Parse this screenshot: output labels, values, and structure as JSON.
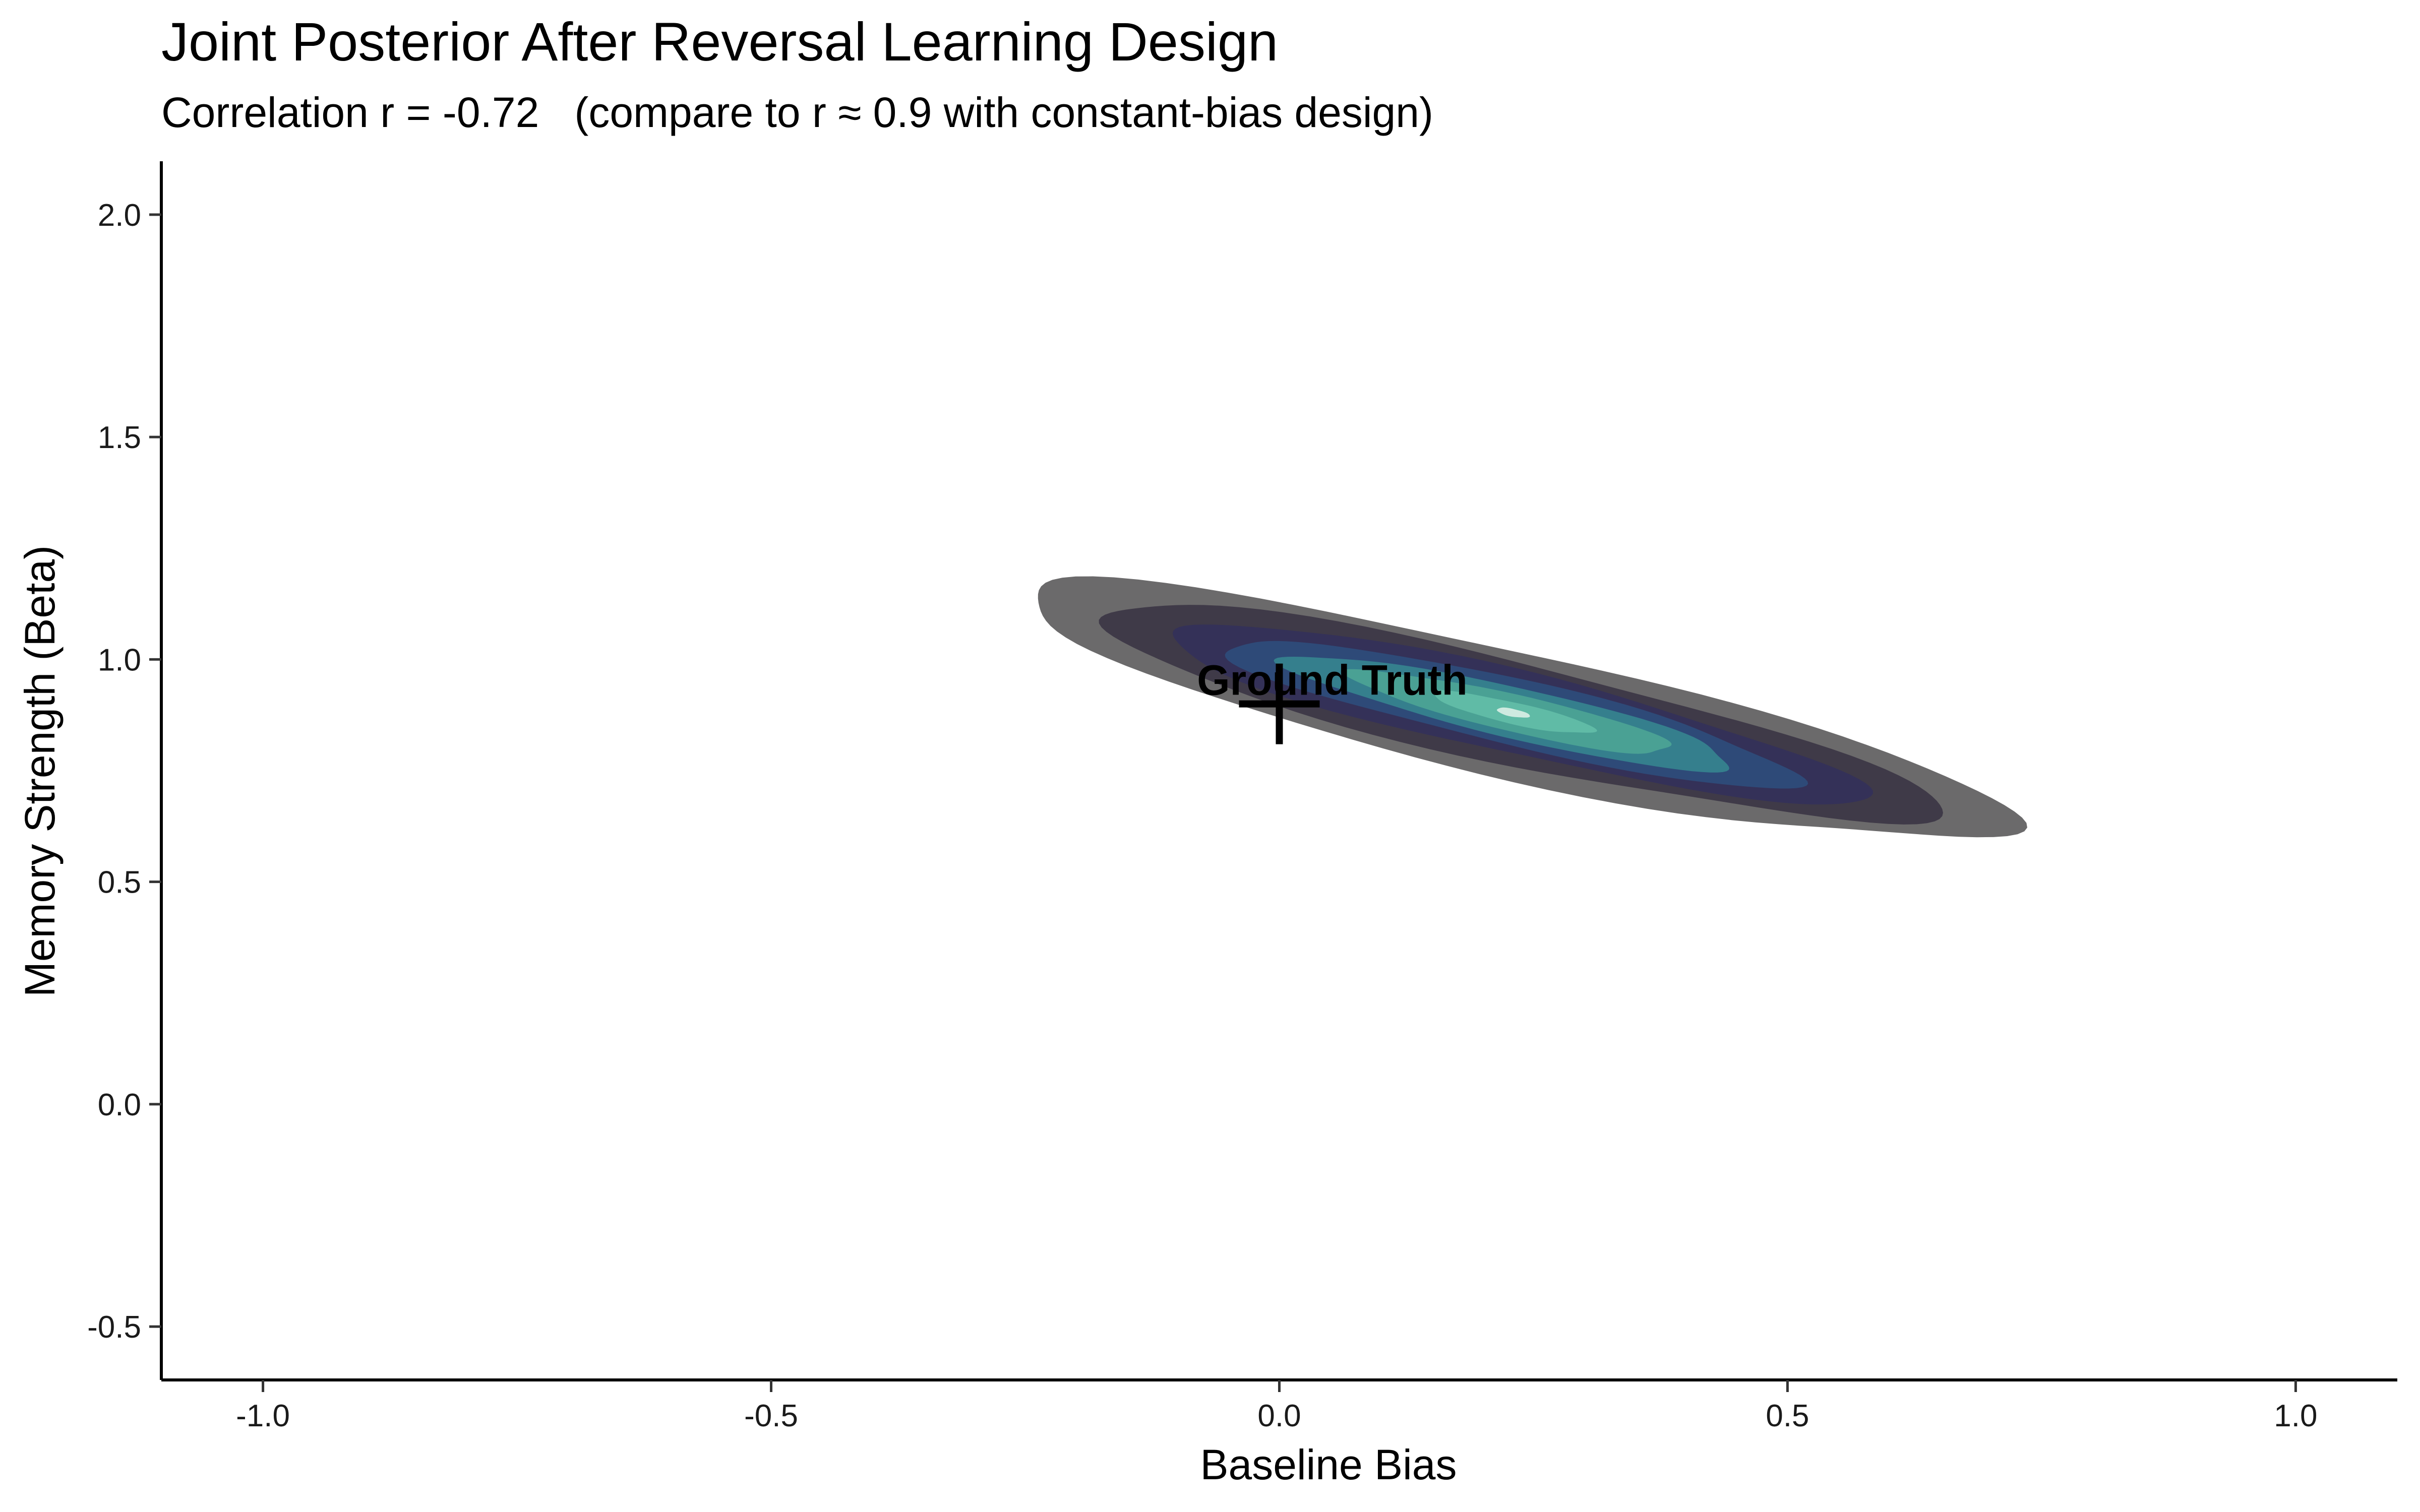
{
  "chart_data": {
    "type": "contour",
    "title": "Joint Posterior After Reversal Learning Design",
    "subtitle": "Correlation r = -0.72   (compare to r ≈ 0.9 with constant-bias design)",
    "xlabel": "Baseline Bias",
    "ylabel": "Memory Strength (Beta)",
    "xlim": [
      -1.1,
      1.1
    ],
    "ylim": [
      -0.62,
      2.12
    ],
    "xticks": [
      -1.0,
      -0.5,
      0.0,
      0.5,
      1.0
    ],
    "xtick_labels": [
      "-1.0",
      "-0.5",
      "0.0",
      "0.5",
      "1.0"
    ],
    "yticks": [
      -0.5,
      0.0,
      0.5,
      1.0,
      1.5,
      2.0
    ],
    "ytick_labels": [
      "-0.5",
      "0.0",
      "0.5",
      "1.0",
      "1.5",
      "2.0"
    ],
    "grid": false,
    "density": {
      "center": [
        0.23,
        0.88
      ],
      "correlation": -0.72,
      "levels": [
        {
          "rx": 0.55,
          "ry": 0.13,
          "color": "#6b6a6b"
        },
        {
          "rx": 0.47,
          "ry": 0.105,
          "color": "#3f3a48"
        },
        {
          "rx": 0.39,
          "ry": 0.085,
          "color": "#343158"
        },
        {
          "rx": 0.32,
          "ry": 0.068,
          "color": "#2e4a78"
        },
        {
          "rx": 0.25,
          "ry": 0.052,
          "color": "#357f8d"
        },
        {
          "rx": 0.18,
          "ry": 0.038,
          "color": "#4aa194"
        },
        {
          "rx": 0.09,
          "ry": 0.022,
          "color": "#60bba6"
        },
        {
          "rx": 0.018,
          "ry": 0.008,
          "color": "#cfeae0"
        }
      ]
    },
    "ground_truth": {
      "x": 0.0,
      "y": 0.9,
      "label": "Ground Truth"
    }
  }
}
